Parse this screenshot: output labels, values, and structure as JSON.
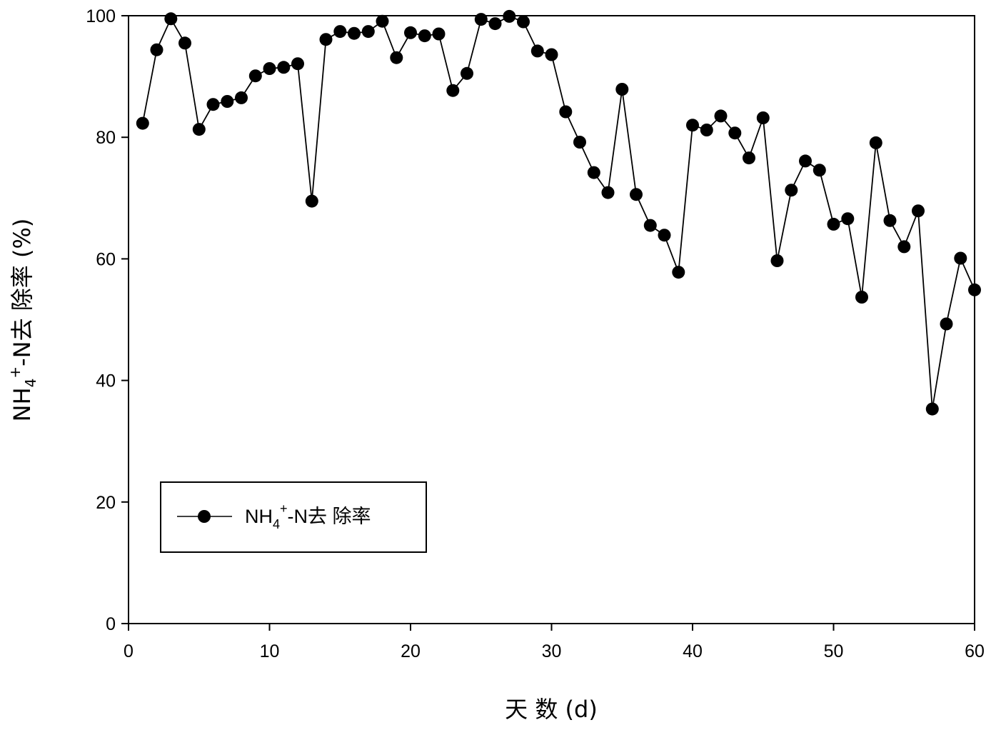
{
  "chart_data": {
    "type": "line",
    "xlabel": "天 数 (d)",
    "ylabel": {
      "base": "NH",
      "sub": "4",
      "sup": "+",
      "rest": "-N去 除率 (%)"
    },
    "xlim": [
      0,
      60
    ],
    "ylim": [
      0,
      100
    ],
    "xticks": [
      0,
      10,
      20,
      30,
      40,
      50,
      60
    ],
    "yticks": [
      0,
      20,
      40,
      60,
      80,
      100
    ],
    "grid": false,
    "legend_position": "lower-left",
    "series": [
      {
        "name": "NH4+-N去 除率",
        "legend_label": {
          "base": "NH",
          "sub": "4",
          "sup": "+",
          "rest": "-N去 除率"
        },
        "color": "#000000",
        "marker": "filled-circle",
        "x": [
          1,
          2,
          3,
          4,
          5,
          6,
          7,
          8,
          9,
          10,
          11,
          12,
          13,
          14,
          15,
          16,
          17,
          18,
          19,
          20,
          21,
          22,
          23,
          24,
          25,
          26,
          27,
          28,
          29,
          30,
          31,
          32,
          33,
          34,
          35,
          36,
          37,
          38,
          39,
          40,
          41,
          42,
          43,
          44,
          45,
          46,
          47,
          48,
          49,
          50,
          51,
          52,
          53,
          54,
          55,
          56,
          57,
          58,
          59,
          60
        ],
        "y": [
          82.3,
          94.4,
          99.5,
          95.5,
          81.3,
          85.4,
          85.9,
          86.5,
          90.1,
          91.3,
          91.5,
          92.1,
          69.5,
          96.1,
          97.4,
          97.1,
          97.4,
          99.1,
          93.1,
          97.2,
          96.7,
          97.0,
          87.7,
          90.5,
          99.4,
          98.7,
          99.9,
          99.0,
          94.2,
          93.6,
          84.2,
          79.2,
          74.2,
          70.9,
          87.9,
          70.6,
          65.5,
          63.9,
          57.8,
          82.0,
          81.2,
          83.5,
          80.7,
          76.6,
          83.2,
          59.7,
          71.3,
          76.1,
          74.6,
          65.7,
          66.6,
          53.7,
          79.1,
          66.3,
          62.0,
          67.9,
          35.3,
          49.3,
          60.1,
          54.9
        ]
      }
    ]
  }
}
